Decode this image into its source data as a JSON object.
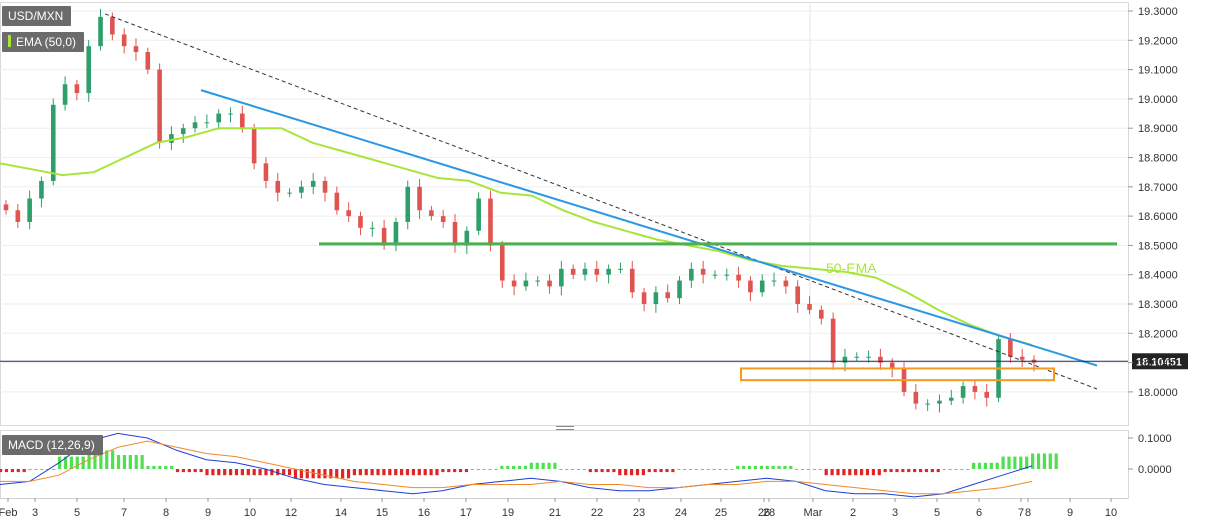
{
  "symbol_label": "USD/MXN",
  "ema_indicator_label": "EMA (50,0)",
  "macd_indicator_label": "MACD (12,26,9)",
  "ema_annotation": "50-EMA",
  "current_price_label": "18.10451",
  "colors": {
    "bull": "#2e9e6a",
    "bear": "#e0544f",
    "ema": "#a8e53a",
    "blue_trendline": "#2a98e6",
    "support_line": "#4caf50",
    "support_zone": "#f59a1e",
    "macd_line": "#1f3fd6",
    "signal_line": "#f08a2a",
    "hist_pos": "#4ee04e",
    "hist_neg": "#e02424",
    "price_line": "#1a237e"
  },
  "chart_data": [
    {
      "type": "candlestick",
      "title": "USD/MXN",
      "ylim": [
        17.9,
        19.33
      ],
      "y_ticks": [
        "19.3000",
        "19.2000",
        "19.1000",
        "19.0000",
        "18.9000",
        "18.8000",
        "18.7000",
        "18.6000",
        "18.5000",
        "18.4000",
        "18.3000",
        "18.2000",
        "18.1000",
        "18.0000"
      ],
      "x_tick_labels": [
        "Feb",
        "3",
        "5",
        "7",
        "8",
        "9",
        "10",
        "12",
        "14",
        "15",
        "16",
        "17",
        "19",
        "21",
        "22",
        "23",
        "24",
        "25",
        "26",
        "28",
        "Mar",
        "2",
        "3",
        "5",
        "6",
        "7",
        "8",
        "9",
        "10"
      ],
      "ohlc_close_path": [
        18.62,
        18.58,
        18.66,
        18.72,
        18.98,
        19.05,
        19.02,
        19.18,
        19.28,
        19.22,
        19.18,
        19.16,
        19.1,
        18.85,
        18.88,
        18.9,
        18.92,
        18.92,
        18.95,
        18.95,
        18.9,
        18.78,
        18.72,
        18.68,
        18.68,
        18.7,
        18.72,
        18.68,
        18.62,
        18.6,
        18.56,
        18.56,
        18.5,
        18.58,
        18.7,
        18.62,
        18.6,
        18.58,
        18.5,
        18.55,
        18.66,
        18.5,
        18.38,
        18.36,
        18.38,
        18.38,
        18.36,
        18.42,
        18.4,
        18.42,
        18.4,
        18.42,
        18.42,
        18.34,
        18.3,
        18.34,
        18.32,
        18.38,
        18.42,
        18.4,
        18.4,
        18.4,
        18.38,
        18.34,
        18.38,
        18.38,
        18.36,
        18.3,
        18.28,
        18.25,
        18.1,
        18.12,
        18.12,
        18.12,
        18.1,
        18.08,
        18.0,
        17.96,
        17.96,
        17.97,
        17.98,
        18.02,
        18.0,
        17.98,
        18.18,
        18.12,
        18.11,
        18.1
      ],
      "ema_50_annotation": "50-EMA",
      "ema_50_values": [
        18.78,
        18.76,
        18.74,
        18.75,
        18.8,
        18.85,
        18.87,
        18.9,
        18.9,
        18.9,
        18.85,
        18.82,
        18.79,
        18.76,
        18.73,
        18.72,
        18.68,
        18.67,
        18.62,
        18.58,
        18.55,
        18.52,
        18.5,
        18.48,
        18.45,
        18.43,
        18.42,
        18.41,
        18.39,
        18.34,
        18.28,
        18.23,
        18.19,
        18.16
      ],
      "lines": [
        {
          "role": "dashed downtrend",
          "from": [
            "Feb 6",
            19.29
          ],
          "to": [
            "Mar 9",
            18.01
          ]
        },
        {
          "role": "blue downtrend",
          "from": [
            "Feb 9",
            19.03
          ],
          "to": [
            "Mar 9",
            18.1
          ]
        },
        {
          "role": "horizontal support",
          "value": 18.505
        },
        {
          "role": "support zone",
          "range": [
            18.04,
            18.08
          ]
        }
      ],
      "last_price": 18.10451
    },
    {
      "type": "line",
      "title": "MACD (12,26,9)",
      "ylim": [
        -0.1,
        0.12
      ],
      "y_ticks": [
        "0.1000",
        "0.0000"
      ],
      "series": [
        {
          "name": "MACD",
          "values": [
            -0.05,
            -0.04,
            0.02,
            0.09,
            0.115,
            0.1,
            0.06,
            0.03,
            0.02,
            0.0,
            -0.03,
            -0.05,
            -0.06,
            -0.07,
            -0.08,
            -0.07,
            -0.05,
            -0.04,
            -0.03,
            -0.04,
            -0.06,
            -0.07,
            -0.07,
            -0.06,
            -0.05,
            -0.04,
            -0.03,
            -0.04,
            -0.07,
            -0.08,
            -0.08,
            -0.09,
            -0.08,
            -0.05,
            -0.02,
            0.01
          ]
        },
        {
          "name": "Signal",
          "values": [
            -0.04,
            -0.04,
            -0.02,
            0.03,
            0.07,
            0.09,
            0.07,
            0.05,
            0.04,
            0.02,
            0.0,
            -0.02,
            -0.04,
            -0.05,
            -0.06,
            -0.06,
            -0.05,
            -0.05,
            -0.05,
            -0.04,
            -0.05,
            -0.05,
            -0.06,
            -0.06,
            -0.05,
            -0.05,
            -0.04,
            -0.04,
            -0.05,
            -0.06,
            -0.07,
            -0.08,
            -0.08,
            -0.07,
            -0.06,
            -0.04
          ]
        }
      ]
    }
  ]
}
